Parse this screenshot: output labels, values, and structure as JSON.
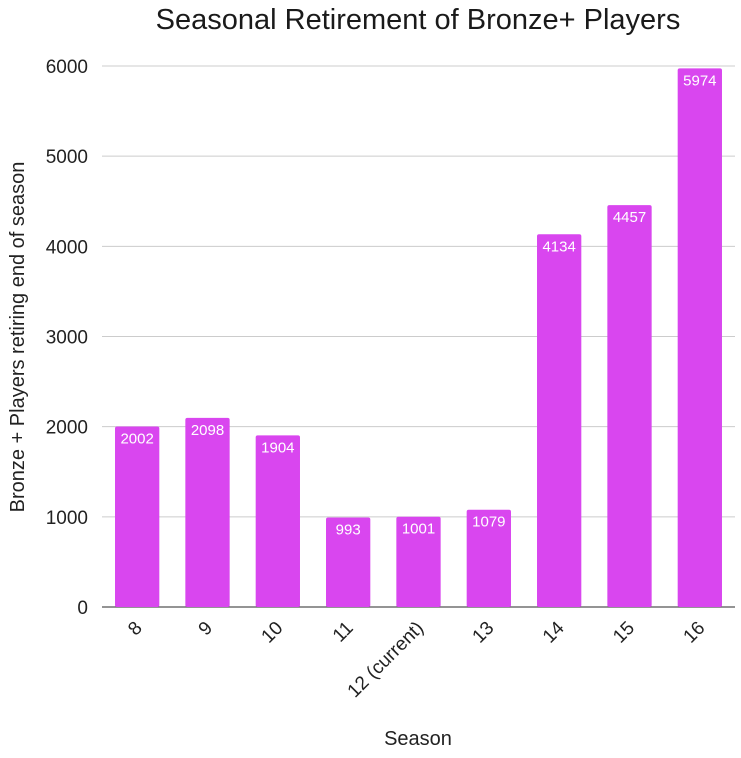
{
  "chart_data": {
    "type": "bar",
    "title": "Seasonal Retirement of Bronze+ Players",
    "xlabel": "Season",
    "ylabel": "Bronze + Players retiring end of season",
    "categories": [
      "8",
      "9",
      "10",
      "11",
      "12 (current)",
      "13",
      "14",
      "15",
      "16"
    ],
    "values": [
      2002,
      2098,
      1904,
      993,
      1001,
      1079,
      4134,
      4457,
      5974
    ],
    "data_labels": [
      "2002",
      "2098",
      "1904",
      "993",
      "1001",
      "1079",
      "4134",
      "4457",
      "5974"
    ],
    "yticks": [
      "0",
      "1000",
      "2000",
      "3000",
      "4000",
      "5000",
      "6000"
    ],
    "ylim": [
      0,
      6000
    ],
    "grid": true,
    "legend": "none",
    "bar_color": "#d946ef",
    "grid_color": "#cccccc",
    "axis_color": "#555555"
  }
}
